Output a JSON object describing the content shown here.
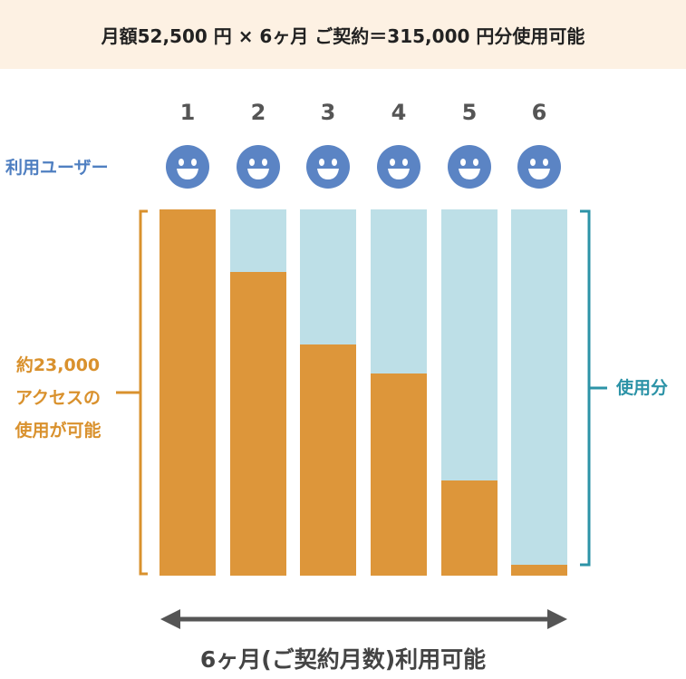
{
  "banner": {
    "text": "月額52,500 円 × 6ヶ月 ご契約＝315,000 円分使用可能"
  },
  "users_label": "利用ユーザー",
  "left_label": {
    "line1": "約23,000",
    "line2": "アクセスの",
    "line3": "使用が可能"
  },
  "right_label": "使用分",
  "bottom_label": "6ヶ月(ご契約月数)利用可能",
  "icon": "smiley-face-icon",
  "colors": {
    "used": "#dd963a",
    "remaining": "#bddfe7",
    "face": "#5b84c4",
    "bracket_left": "#d9912d",
    "bracket_right": "#2c93a7",
    "arrow": "#555555"
  },
  "chart_data": {
    "type": "bar",
    "categories": [
      "1",
      "2",
      "3",
      "4",
      "5",
      "6"
    ],
    "series": [
      {
        "values": [
          1.0,
          0.83,
          0.63,
          0.553,
          0.26,
          0.03
        ]
      },
      {
        "values": [
          0.0,
          0.17,
          0.37,
          0.447,
          0.74,
          0.97
        ]
      }
    ],
    "ylim": [
      0,
      1
    ]
  }
}
